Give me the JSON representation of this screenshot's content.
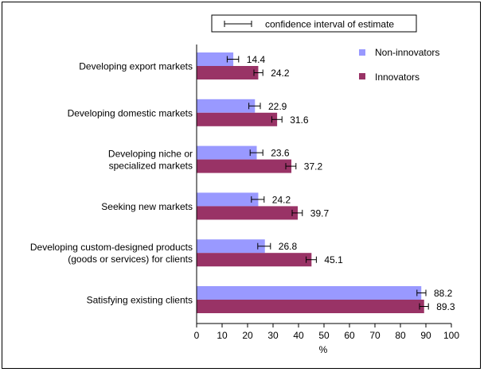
{
  "chart_data": {
    "type": "bar",
    "orientation": "horizontal",
    "categories": [
      [
        "Developing export markets"
      ],
      [
        "Developing domestic markets"
      ],
      [
        "Developing niche or",
        "specialized markets"
      ],
      [
        "Seeking new markets"
      ],
      [
        "Developing custom-designed products",
        "(goods or services) for clients"
      ],
      [
        "Satisfying existing clients"
      ]
    ],
    "series": [
      {
        "name": "Non-innovators",
        "color": "#9999ff",
        "values": [
          14.4,
          22.9,
          23.6,
          24.2,
          26.8,
          88.2
        ],
        "labels": [
          "14.4",
          "22.9",
          "23.6",
          "24.2",
          "26.8",
          "88.2"
        ],
        "ci_low": [
          12.0,
          20.5,
          21.0,
          21.5,
          24.0,
          86.5
        ],
        "ci_high": [
          16.5,
          25.0,
          26.0,
          26.5,
          29.0,
          90.0
        ]
      },
      {
        "name": "Innovators",
        "color": "#993366",
        "values": [
          24.2,
          31.6,
          37.2,
          39.7,
          45.1,
          89.3
        ],
        "labels": [
          "24.2",
          "31.6",
          "37.2",
          "39.7",
          "45.1",
          "89.3"
        ],
        "ci_low": [
          22.5,
          29.5,
          35.0,
          37.5,
          43.0,
          87.5
        ],
        "ci_high": [
          26.0,
          33.5,
          39.0,
          41.5,
          47.0,
          91.0
        ]
      }
    ],
    "xlabel": "%",
    "xlim": [
      0,
      100
    ],
    "xticks": [
      0,
      10,
      20,
      30,
      40,
      50,
      60,
      70,
      80,
      90,
      100
    ],
    "grid": false,
    "legend_position": "top-right",
    "ci_legend_label": "confidence interval of estimate"
  }
}
